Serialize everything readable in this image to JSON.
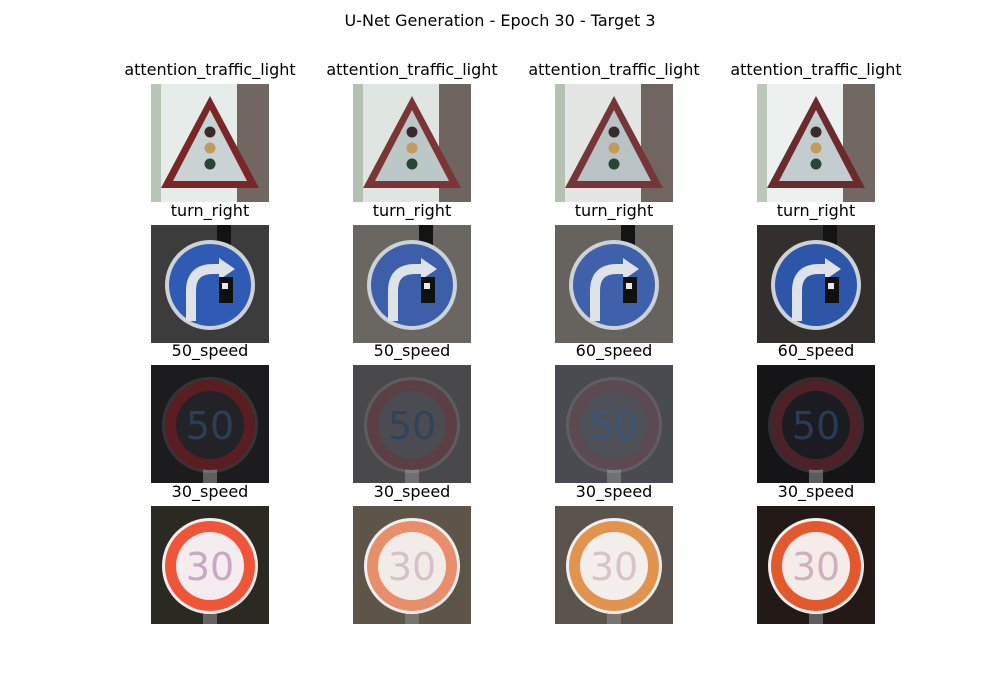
{
  "figure": {
    "title": "U-Net Generation - Epoch 30 - Target 3",
    "rows": [
      {
        "labels": [
          "attention_traffic_light",
          "attention_traffic_light",
          "attention_traffic_light",
          "attention_traffic_light"
        ],
        "icon": "triangle-warning-sign-icon",
        "variants": [
          {
            "bg": "#e6ecea",
            "accent": "#7a2626",
            "inner": "#c9d3d4"
          },
          {
            "bg": "#dfe6e1",
            "accent": "#7a3534",
            "inner": "#bcc7c8"
          },
          {
            "bg": "#e3e6e2",
            "accent": "#763637",
            "inner": "#b9c3c5"
          },
          {
            "bg": "#ecf0ee",
            "accent": "#6b2a2c",
            "inner": "#c3ccce"
          }
        ]
      },
      {
        "labels": [
          "turn_right",
          "turn_right",
          "turn_right",
          "turn_right"
        ],
        "icon": "blue-turn-right-sign-icon",
        "variants": [
          {
            "bg": "#3c3c3d",
            "accent": "#2f5bb5",
            "inner": "#2b55ab"
          },
          {
            "bg": "#6a6763",
            "accent": "#3d5ea8",
            "inner": "#3a5aa0"
          },
          {
            "bg": "#66625e",
            "accent": "#3f61ab",
            "inner": "#3b5ca5"
          },
          {
            "bg": "#332f2d",
            "accent": "#2d55aa",
            "inner": "#2a4f9f"
          }
        ]
      },
      {
        "labels": [
          "50_speed",
          "50_speed",
          "60_speed",
          "60_speed"
        ],
        "icon": "speed-limit-sign-icon",
        "number": "50",
        "variants": [
          {
            "bg": "#1c1c1e",
            "accent": "#5a1d22",
            "inner": "#222327",
            "text": "#2d3e57"
          },
          {
            "bg": "#49494b",
            "accent": "#5b3f45",
            "inner": "#4b4c52",
            "text": "#31435a"
          },
          {
            "bg": "#4a4b50",
            "accent": "#5b4a52",
            "inner": "#4e5157",
            "text": "#3c5676"
          },
          {
            "bg": "#151518",
            "accent": "#4c2128",
            "inner": "#1b1c21",
            "text": "#2a3b55"
          }
        ]
      },
      {
        "labels": [
          "30_speed",
          "30_speed",
          "30_speed",
          "30_speed"
        ],
        "icon": "speed-limit-sign-icon",
        "number": "30",
        "variants": [
          {
            "bg": "#2b2a22",
            "accent": "#f0553a",
            "inner": "#f4ecee",
            "text": "#c9a8c2"
          },
          {
            "bg": "#5c5548",
            "accent": "#e98e6b",
            "inner": "#f2ece9",
            "text": "#d3c2c6"
          },
          {
            "bg": "#5b544d",
            "accent": "#e2944f",
            "inner": "#f4eeed",
            "text": "#d6c4c6"
          },
          {
            "bg": "#231a18",
            "accent": "#e4582e",
            "inner": "#f5ebe9",
            "text": "#cfb1bd"
          }
        ]
      }
    ]
  }
}
